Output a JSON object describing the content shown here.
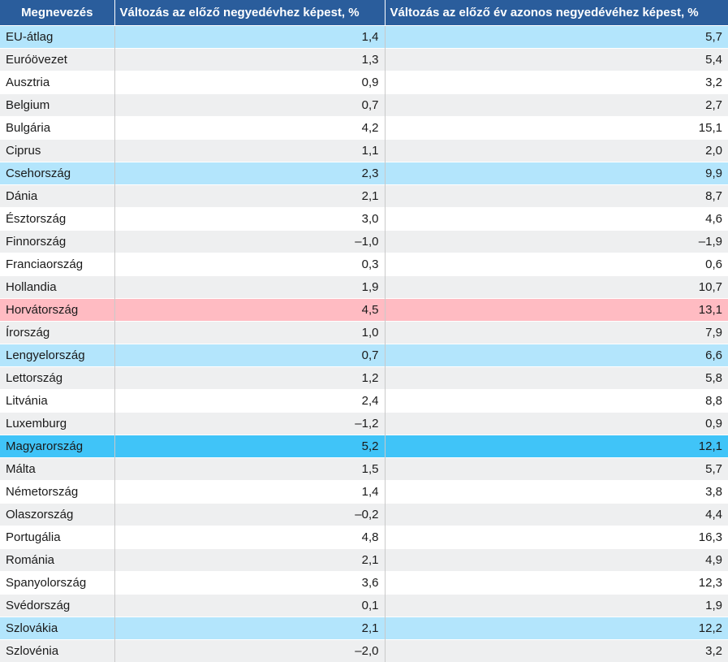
{
  "headers": [
    "Megnevezés",
    "Változás az előző negyedévhez képest, %",
    "Változás az előző év azonos negyedévéhez képest, %"
  ],
  "colors": {
    "header_bg": "#2a5d9c",
    "highlight_light_blue": "#b3e5fc",
    "highlight_red": "#ffbbc2",
    "highlight_blue": "#40c4f8",
    "stripe": "#eeeff0"
  },
  "rows": [
    {
      "name": "EU-átlag",
      "qoq": "1,4",
      "yoy": "5,7",
      "hl": "blue"
    },
    {
      "name": "Euróövezet",
      "qoq": "1,3",
      "yoy": "5,4",
      "hl": ""
    },
    {
      "name": "Ausztria",
      "qoq": "0,9",
      "yoy": "3,2",
      "hl": ""
    },
    {
      "name": "Belgium",
      "qoq": "0,7",
      "yoy": "2,7",
      "hl": ""
    },
    {
      "name": "Bulgária",
      "qoq": "4,2",
      "yoy": "15,1",
      "hl": ""
    },
    {
      "name": "Ciprus",
      "qoq": "1,1",
      "yoy": "2,0",
      "hl": ""
    },
    {
      "name": "Csehország",
      "qoq": "2,3",
      "yoy": "9,9",
      "hl": "blue"
    },
    {
      "name": "Dánia",
      "qoq": "2,1",
      "yoy": "8,7",
      "hl": ""
    },
    {
      "name": "Észtország",
      "qoq": "3,0",
      "yoy": "4,6",
      "hl": ""
    },
    {
      "name": "Finnország",
      "qoq": "–1,0",
      "yoy": "–1,9",
      "hl": ""
    },
    {
      "name": "Franciaország",
      "qoq": "0,3",
      "yoy": "0,6",
      "hl": ""
    },
    {
      "name": "Hollandia",
      "qoq": "1,9",
      "yoy": "10,7",
      "hl": ""
    },
    {
      "name": "Horvátország",
      "qoq": "4,5",
      "yoy": "13,1",
      "hl": "red"
    },
    {
      "name": "Írország",
      "qoq": "1,0",
      "yoy": "7,9",
      "hl": ""
    },
    {
      "name": "Lengyelország",
      "qoq": "0,7",
      "yoy": "6,6",
      "hl": "blue"
    },
    {
      "name": "Lettország",
      "qoq": "1,2",
      "yoy": "5,8",
      "hl": ""
    },
    {
      "name": "Litvánia",
      "qoq": "2,4",
      "yoy": "8,8",
      "hl": ""
    },
    {
      "name": "Luxemburg",
      "qoq": "–1,2",
      "yoy": "0,9",
      "hl": ""
    },
    {
      "name": "Magyarország",
      "qoq": "5,2",
      "yoy": "12,1",
      "hl": "strong"
    },
    {
      "name": "Málta",
      "qoq": "1,5",
      "yoy": "5,7",
      "hl": ""
    },
    {
      "name": "Németország",
      "qoq": "1,4",
      "yoy": "3,8",
      "hl": ""
    },
    {
      "name": "Olaszország",
      "qoq": "–0,2",
      "yoy": "4,4",
      "hl": ""
    },
    {
      "name": "Portugália",
      "qoq": "4,8",
      "yoy": "16,3",
      "hl": ""
    },
    {
      "name": "Románia",
      "qoq": "2,1",
      "yoy": "4,9",
      "hl": ""
    },
    {
      "name": "Spanyolország",
      "qoq": "3,6",
      "yoy": "12,3",
      "hl": ""
    },
    {
      "name": "Svédország",
      "qoq": "0,1",
      "yoy": "1,9",
      "hl": ""
    },
    {
      "name": "Szlovákia",
      "qoq": "2,1",
      "yoy": "12,2",
      "hl": "blue"
    },
    {
      "name": "Szlovénia",
      "qoq": "–2,0",
      "yoy": "3,2",
      "hl": ""
    }
  ]
}
